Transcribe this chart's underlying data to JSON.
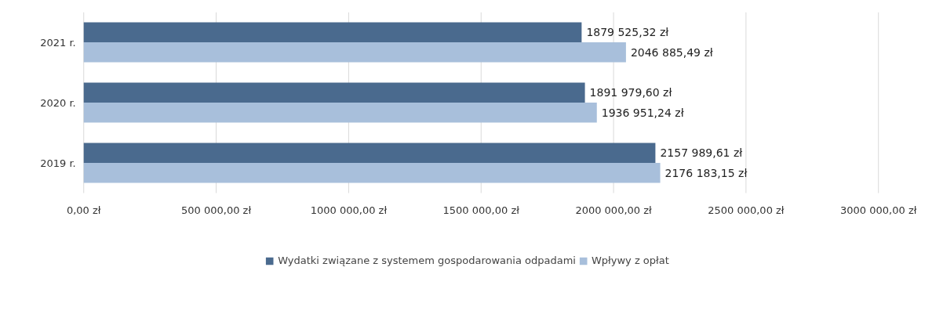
{
  "chart_data": {
    "type": "bar",
    "orientation": "horizontal",
    "categories": [
      "2021 r.",
      "2020 r.",
      "2019 r."
    ],
    "series": [
      {
        "name": "Wydatki związane z systemem gospodarowania odpadami",
        "color": "#4a6a8e",
        "values": [
          1879525.32,
          1891979.6,
          2157989.61
        ],
        "value_labels": [
          "1879 525,32 zł",
          "1891 979,60 zł",
          "2157 989,61 zł"
        ]
      },
      {
        "name": "Wpływy z opłat",
        "color": "#a8bfdb",
        "values": [
          2046885.49,
          1936951.24,
          2176183.15
        ],
        "value_labels": [
          "2046 885,49 zł",
          "1936 951,24 zł",
          "2176 183,15 zł"
        ]
      }
    ],
    "xlim": [
      0,
      3000000
    ],
    "xticks": [
      {
        "value": 0,
        "label": "0,00 zł"
      },
      {
        "value": 500000,
        "label": "500 000,00 zł"
      },
      {
        "value": 1000000,
        "label": "1000 000,00 zł"
      },
      {
        "value": 1500000,
        "label": "1500 000,00 zł"
      },
      {
        "value": 2000000,
        "label": "2000 000,00 zł"
      },
      {
        "value": 2500000,
        "label": "2500 000,00 zł"
      },
      {
        "value": 3000000,
        "label": "3000 000,00 zł"
      }
    ],
    "grid": "x",
    "legend": "bottom"
  }
}
